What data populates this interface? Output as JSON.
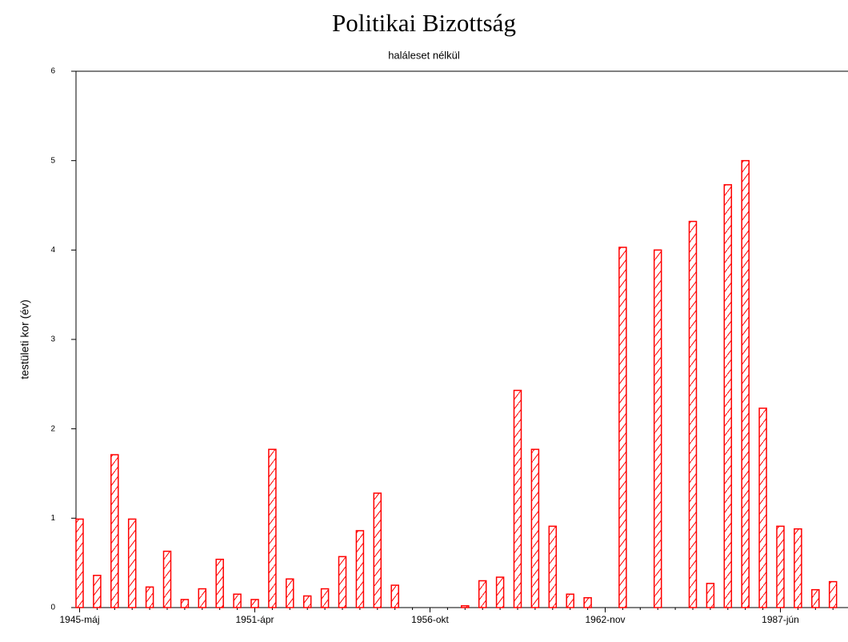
{
  "chart_data": {
    "type": "bar",
    "title": "Politikai Bizottság",
    "subtitle": "haláleset nélkül",
    "y_label": "testületi kor (év)",
    "categories": [
      "1945-máj",
      null,
      null,
      null,
      null,
      null,
      null,
      null,
      null,
      null,
      "1951-ápr",
      null,
      null,
      null,
      null,
      null,
      null,
      null,
      null,
      null,
      "1956-okt",
      null,
      null,
      null,
      null,
      null,
      null,
      null,
      null,
      null,
      "1962-nov",
      null,
      null,
      null,
      null,
      null,
      null,
      null,
      null,
      null,
      "1987-jún",
      null,
      null,
      null
    ],
    "values": [
      0.99,
      0.36,
      1.71,
      0.99,
      0.23,
      0.63,
      0.09,
      0.21,
      0.54,
      0.15,
      0.09,
      1.77,
      0.32,
      0.13,
      0.21,
      0.57,
      0.86,
      1.28,
      0.25,
      0,
      0,
      0,
      0.02,
      0.3,
      0.34,
      2.43,
      1.77,
      0.91,
      0.15,
      0.11,
      0,
      4.03,
      0,
      4.0,
      0,
      4.32,
      0.27,
      4.73,
      5.0,
      2.23,
      0.91,
      0.88,
      0.2,
      0.29
    ],
    "color": "#ff0000",
    "ylim": [
      0,
      6
    ],
    "yticks": [
      0,
      1,
      2,
      3,
      4,
      5,
      6
    ]
  }
}
